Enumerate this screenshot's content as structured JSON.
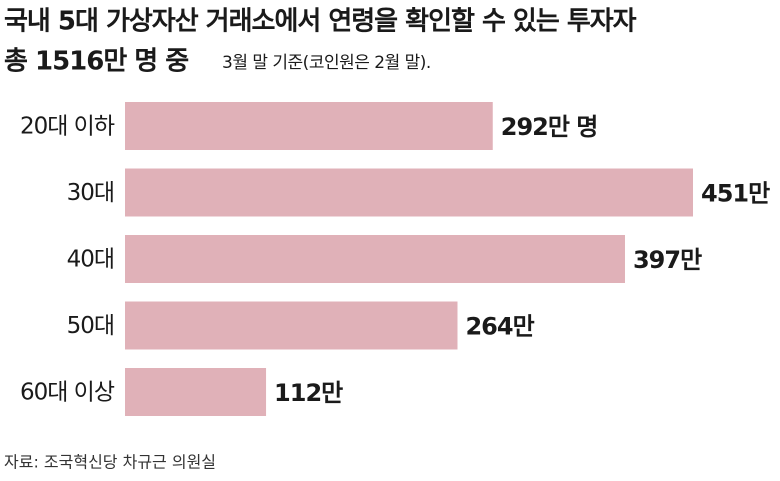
{
  "chart_data": {
    "type": "bar",
    "orientation": "horizontal",
    "title": [
      "국내 5대 가상자산 거래소에서 연령을 확인할 수 있는 투자자",
      "총 1516만 명 중"
    ],
    "subtitle": "3월 말 기준(코인원은 2월 말).",
    "categories": [
      "20대 이하",
      "30대",
      "40대",
      "50대",
      "60대 이상"
    ],
    "values": [
      292,
      451,
      397,
      264,
      112
    ],
    "value_labels": [
      "292만 명",
      "451만",
      "397만",
      "264만",
      "112만"
    ],
    "color": "#e0b1b8",
    "source": "자료: 조국혁신당 차규근 의원실"
  }
}
